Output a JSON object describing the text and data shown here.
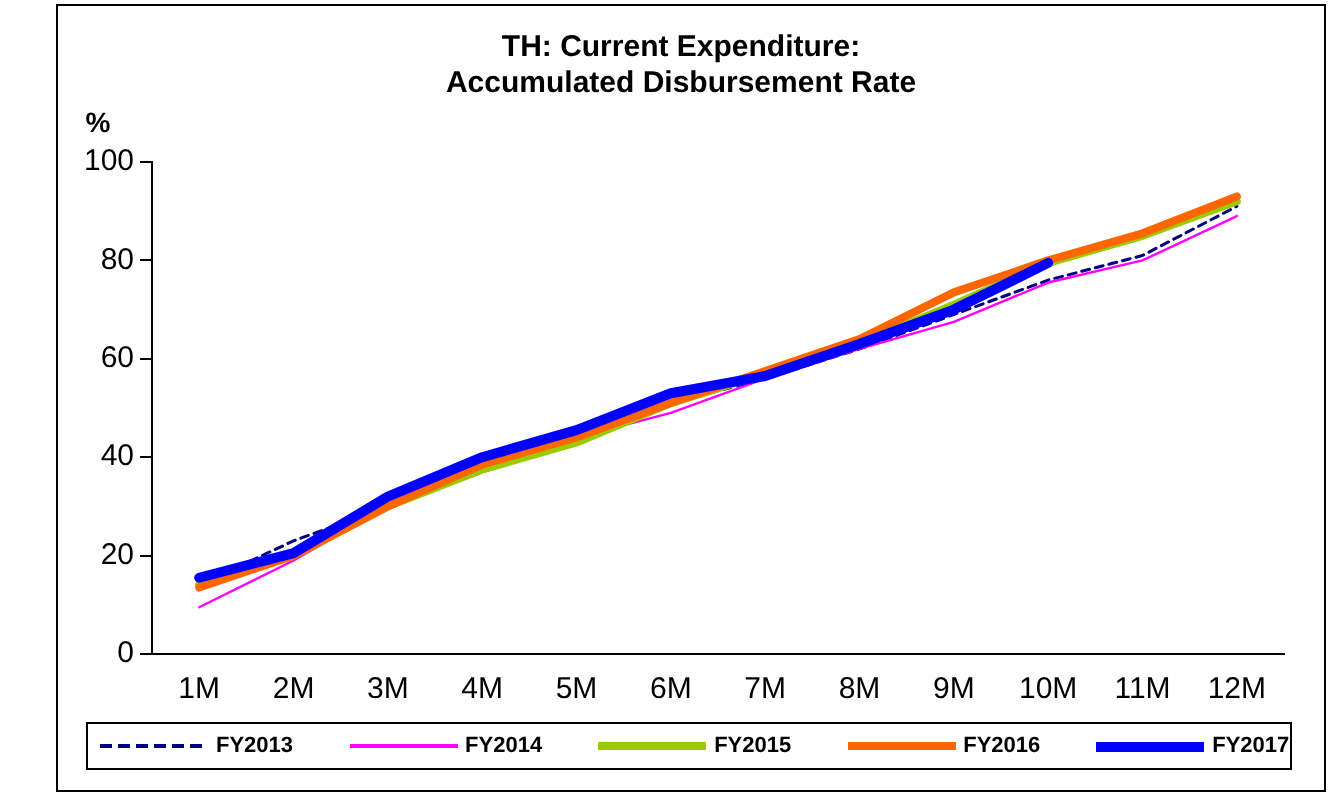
{
  "chart_data": {
    "type": "line",
    "title": "TH: Current Expenditure:\nAccumulated Disbursement Rate",
    "ylabel": "%",
    "categories": [
      "1M",
      "2M",
      "3M",
      "4M",
      "5M",
      "6M",
      "7M",
      "8M",
      "9M",
      "10M",
      "11M",
      "12M"
    ],
    "ylim": [
      0,
      100
    ],
    "yticks": [
      0,
      20,
      40,
      60,
      80,
      100
    ],
    "grid": false,
    "legend": "bottom",
    "marker": "none",
    "series": [
      {
        "name": "FY2013",
        "color": "#000080",
        "line_style": "dashed",
        "values": [
          14,
          23,
          30,
          37,
          43,
          51,
          56,
          62,
          69,
          76,
          81,
          91
        ]
      },
      {
        "name": "FY2014",
        "color": "#ff00ff",
        "values": [
          9.5,
          19,
          30,
          37,
          44,
          49,
          56,
          62,
          67.5,
          75.5,
          80,
          89
        ]
      },
      {
        "name": "FY2015",
        "color": "#99cc00",
        "values": [
          14,
          20,
          30,
          37.5,
          43,
          51,
          57,
          63,
          71,
          79.5,
          85,
          92
        ]
      },
      {
        "name": "FY2016",
        "color": "#ff6600",
        "values": [
          13.5,
          20,
          30,
          38.5,
          44,
          51,
          57.5,
          64,
          73.5,
          80,
          85.5,
          93
        ]
      },
      {
        "name": "FY2017",
        "color": "#0000ff",
        "values": [
          15.5,
          20.5,
          32,
          40,
          45.5,
          53,
          56.5,
          63,
          70,
          79.5,
          null,
          null
        ]
      }
    ]
  }
}
